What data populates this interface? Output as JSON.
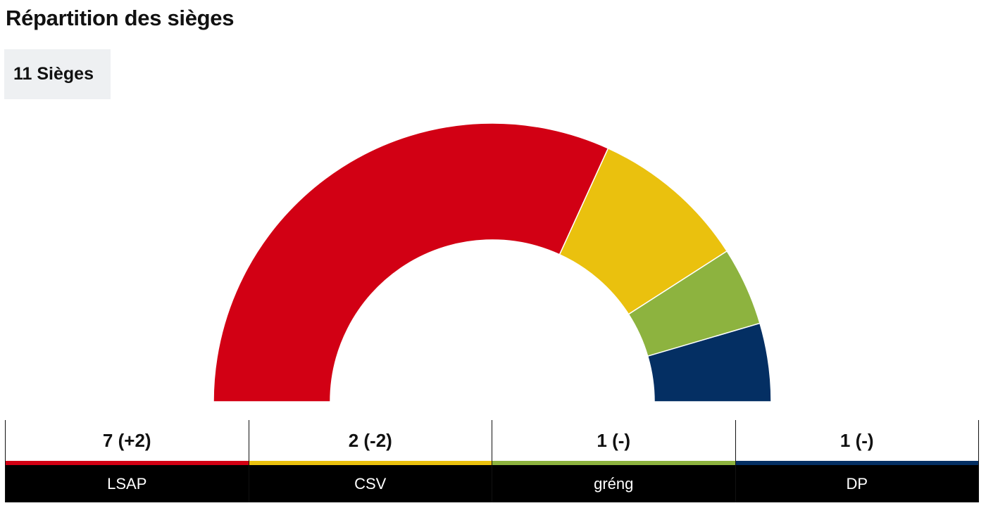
{
  "header": {
    "title": "Répartition des sièges",
    "seats_total_label": "11 Sièges"
  },
  "chart_data": {
    "type": "pie",
    "subtype": "half-donut",
    "title": "Répartition des sièges",
    "total": 11,
    "series": [
      {
        "name": "LSAP",
        "values": [
          7
        ],
        "change": "+2",
        "label": "7 (+2)",
        "color": "#d20014"
      },
      {
        "name": "CSV",
        "values": [
          2
        ],
        "change": "-2",
        "label": "2 (-2)",
        "color": "#eac10e"
      },
      {
        "name": "gréng",
        "values": [
          1
        ],
        "change": "-",
        "label": "1 (-)",
        "color": "#8db33f"
      },
      {
        "name": "DP",
        "values": [
          1
        ],
        "change": "-",
        "label": "1 (-)",
        "color": "#042f63"
      }
    ]
  },
  "table": {
    "parties": [
      {
        "name": "LSAP",
        "seats_label": "7 (+2)",
        "color": "#d20014"
      },
      {
        "name": "CSV",
        "seats_label": "2 (-2)",
        "color": "#eac10e"
      },
      {
        "name": "gréng",
        "seats_label": "1 (-)",
        "color": "#8db33f"
      },
      {
        "name": "DP",
        "seats_label": "1 (-)",
        "color": "#042f63"
      }
    ]
  }
}
